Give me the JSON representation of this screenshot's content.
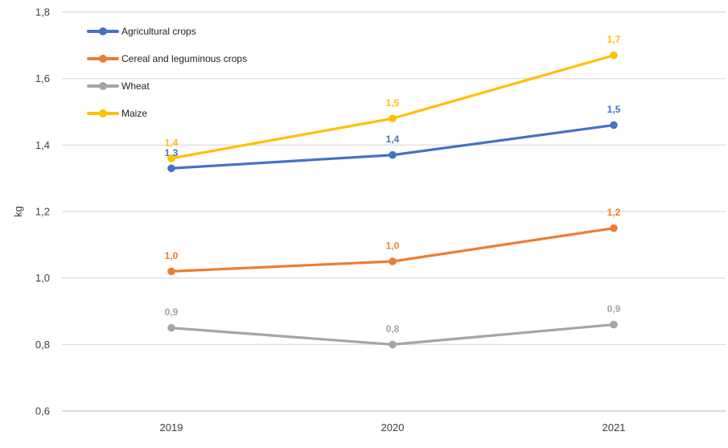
{
  "chart_data": {
    "type": "line",
    "title": "",
    "xlabel": "",
    "ylabel": "kg",
    "categories": [
      "2019",
      "2020",
      "2021"
    ],
    "series": [
      {
        "name": "Agricultural crops",
        "color": "#4472C4",
        "values": [
          1.33,
          1.37,
          1.46
        ],
        "point_labels": [
          "1,3",
          "1,4",
          "1,5"
        ]
      },
      {
        "name": "Cereal and leguminous crops",
        "color": "#ED7D31",
        "values": [
          1.02,
          1.05,
          1.15
        ],
        "point_labels": [
          "1,0",
          "1,0",
          "1,2"
        ]
      },
      {
        "name": "Wheat",
        "color": "#A5A5A5",
        "values": [
          0.85,
          0.8,
          0.86
        ],
        "point_labels": [
          "0,9",
          "0,8",
          "0,9"
        ]
      },
      {
        "name": "Maize",
        "color": "#FFC000",
        "values": [
          1.36,
          1.48,
          1.67
        ],
        "point_labels": [
          "1,4",
          "1,5",
          "1,7"
        ]
      }
    ],
    "y_tick_labels": [
      "1,8",
      "1,6",
      "1,4",
      "1,2",
      "1,0",
      "0,8",
      "0,6"
    ],
    "y_tick_values": [
      1.8,
      1.6,
      1.4,
      1.2,
      1.0,
      0.8,
      0.6
    ],
    "ylim": [
      0.6,
      1.8
    ],
    "grid": true,
    "legend_position": "top-left",
    "decimal_separator": ","
  },
  "colors": {
    "background": "#FFFFFF",
    "grid": "#D9D9D9",
    "axis_text": "#3F3F3F"
  }
}
